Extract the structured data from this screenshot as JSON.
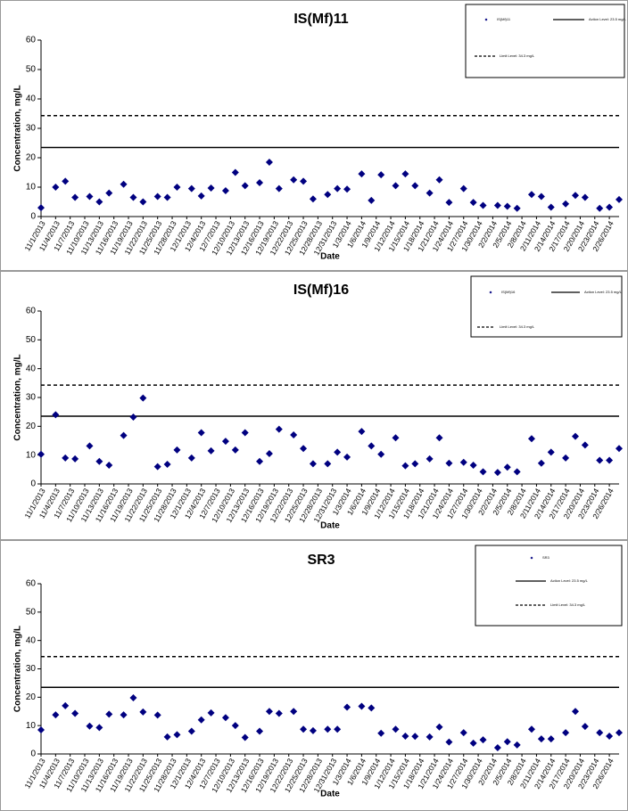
{
  "chart_data": [
    {
      "type": "scatter",
      "title": "IS(Mf)11",
      "x_label": "Date",
      "y_label": "Concentration, mg/L",
      "x": [
        "11/1/2013",
        "11/4/2013",
        "11/6/2013",
        "11/8/2013",
        "11/11/2013",
        "11/13/2013",
        "11/15/2013",
        "11/18/2013",
        "11/20/2013",
        "11/22/2013",
        "11/25/2013",
        "11/27/2013",
        "11/29/2013",
        "12/2/2013",
        "12/4/2013",
        "12/6/2013",
        "12/9/2013",
        "12/11/2013",
        "12/13/2013",
        "12/16/2013",
        "12/18/2013",
        "12/20/2013",
        "12/23/2013",
        "12/25/2013",
        "12/27/2013",
        "12/30/2013",
        "1/1/2014",
        "1/3/2014",
        "1/6/2014",
        "1/8/2014",
        "1/10/2014",
        "1/13/2014",
        "1/15/2014",
        "1/17/2014",
        "1/20/2014",
        "1/22/2014",
        "1/24/2014",
        "1/27/2014",
        "1/29/2014",
        "1/31/2014",
        "2/3/2014",
        "2/5/2014",
        "2/7/2014",
        "2/10/2014",
        "2/12/2014",
        "2/14/2014",
        "2/17/2014",
        "2/19/2014",
        "2/21/2014",
        "2/24/2014",
        "2/26/2014",
        "2/28/2014"
      ],
      "series": [
        {
          "name": "IS(Mf)11",
          "color": "#000080",
          "values": [
            3,
            10,
            12,
            6.5,
            6.8,
            5,
            8,
            11,
            6.5,
            5,
            6.8,
            6.5,
            10,
            9.5,
            7,
            9.7,
            8.8,
            15,
            10.5,
            11.5,
            18.5,
            9.5,
            12.5,
            12,
            6,
            7.5,
            9.5,
            9.3,
            14.5,
            5.5,
            14.2,
            10.5,
            14.5,
            10.5,
            8,
            12.5,
            4.8,
            9.5,
            4.8,
            3.8,
            3.8,
            3.5,
            2.8,
            7.5,
            6.8,
            3.2,
            4.3,
            7.2,
            6.5,
            2.8,
            3.2,
            5.8
          ]
        }
      ],
      "reference_lines": [
        {
          "name": "Action Level: 23.5 mg/L",
          "value": 23.5,
          "color": "#000000",
          "dashed": false
        },
        {
          "name": "Limit Level: 34.3 mg/L",
          "value": 34.3,
          "color": "#000000",
          "dashed": true
        }
      ],
      "xlim": [
        "11/1/2013",
        "2/28/2014"
      ],
      "xticks": [
        "11/1/2013",
        "11/4/2013",
        "11/7/2013",
        "11/10/2013",
        "11/13/2013",
        "11/16/2013",
        "11/19/2013",
        "11/22/2013",
        "11/25/2013",
        "11/28/2013",
        "12/1/2013",
        "12/4/2013",
        "12/7/2013",
        "12/10/2013",
        "12/13/2013",
        "12/16/2013",
        "12/19/2013",
        "12/22/2013",
        "12/25/2013",
        "12/28/2013",
        "12/31/2013",
        "1/3/2014",
        "1/6/2014",
        "1/9/2014",
        "1/12/2014",
        "1/15/2014",
        "1/18/2014",
        "1/21/2014",
        "1/24/2014",
        "1/27/2014",
        "1/30/2014",
        "2/2/2014",
        "2/5/2014",
        "2/8/2014",
        "2/11/2014",
        "2/14/2014",
        "2/17/2014",
        "2/20/2014",
        "2/23/2014",
        "2/26/2014"
      ],
      "ylim": [
        0,
        60
      ],
      "yticks": [
        0,
        10,
        20,
        30,
        40,
        50,
        60
      ]
    },
    {
      "type": "scatter",
      "title": "IS(Mf)16",
      "x_label": "Date",
      "y_label": "Concentration, mg/L",
      "x": [
        "11/1/2013",
        "11/4/2013",
        "11/6/2013",
        "11/8/2013",
        "11/11/2013",
        "11/13/2013",
        "11/15/2013",
        "11/18/2013",
        "11/20/2013",
        "11/22/2013",
        "11/25/2013",
        "11/27/2013",
        "11/29/2013",
        "12/2/2013",
        "12/4/2013",
        "12/6/2013",
        "12/9/2013",
        "12/11/2013",
        "12/13/2013",
        "12/16/2013",
        "12/18/2013",
        "12/20/2013",
        "12/23/2013",
        "12/25/2013",
        "12/27/2013",
        "12/30/2013",
        "1/1/2014",
        "1/3/2014",
        "1/6/2014",
        "1/8/2014",
        "1/10/2014",
        "1/13/2014",
        "1/15/2014",
        "1/17/2014",
        "1/20/2014",
        "1/22/2014",
        "1/24/2014",
        "1/27/2014",
        "1/29/2014",
        "1/31/2014",
        "2/3/2014",
        "2/5/2014",
        "2/7/2014",
        "2/10/2014",
        "2/12/2014",
        "2/14/2014",
        "2/17/2014",
        "2/19/2014",
        "2/21/2014",
        "2/24/2014",
        "2/26/2014",
        "2/28/2014"
      ],
      "series": [
        {
          "name": "IS(Mf)16",
          "color": "#000080",
          "values": [
            10.3,
            24,
            9,
            8.7,
            13.2,
            7.8,
            6.5,
            16.8,
            23.2,
            29.8,
            6,
            6.8,
            11.8,
            9,
            17.8,
            11.5,
            14.8,
            11.8,
            17.8,
            7.8,
            10.5,
            19,
            17,
            12.3,
            7,
            7,
            11,
            9.3,
            18.2,
            13.2,
            10.3,
            16,
            6.3,
            7,
            8.7,
            16,
            7.2,
            7.5,
            6.5,
            4.2,
            4,
            5.8,
            4.2,
            15.7,
            7.2,
            11,
            9,
            16.5,
            13.5,
            8.2,
            8.2,
            12.3
          ]
        }
      ],
      "reference_lines": [
        {
          "name": "Action Level: 23.5 mg/L",
          "value": 23.5,
          "color": "#000000",
          "dashed": false
        },
        {
          "name": "Limit Level: 34.3 mg/L",
          "value": 34.3,
          "color": "#000000",
          "dashed": true
        }
      ],
      "xlim": [
        "11/1/2013",
        "2/28/2014"
      ],
      "xticks": [
        "11/1/2013",
        "11/4/2013",
        "11/7/2013",
        "11/10/2013",
        "11/13/2013",
        "11/16/2013",
        "11/19/2013",
        "11/22/2013",
        "11/25/2013",
        "11/28/2013",
        "12/1/2013",
        "12/4/2013",
        "12/7/2013",
        "12/10/2013",
        "12/13/2013",
        "12/16/2013",
        "12/19/2013",
        "12/22/2013",
        "12/25/2013",
        "12/28/2013",
        "12/31/2013",
        "1/3/2014",
        "1/6/2014",
        "1/9/2014",
        "1/12/2014",
        "1/15/2014",
        "1/18/2014",
        "1/21/2014",
        "1/24/2014",
        "1/27/2014",
        "1/30/2014",
        "2/2/2014",
        "2/5/2014",
        "2/8/2014",
        "2/11/2014",
        "2/14/2014",
        "2/17/2014",
        "2/20/2014",
        "2/23/2014",
        "2/26/2014"
      ],
      "ylim": [
        0,
        60
      ],
      "yticks": [
        0,
        10,
        20,
        30,
        40,
        50,
        60
      ]
    },
    {
      "type": "scatter",
      "title": "SR3",
      "x_label": "Date",
      "y_label": "Concentration, mg/L",
      "x": [
        "11/1/2013",
        "11/4/2013",
        "11/6/2013",
        "11/8/2013",
        "11/11/2013",
        "11/13/2013",
        "11/15/2013",
        "11/18/2013",
        "11/20/2013",
        "11/22/2013",
        "11/25/2013",
        "11/27/2013",
        "11/29/2013",
        "12/2/2013",
        "12/4/2013",
        "12/6/2013",
        "12/9/2013",
        "12/11/2013",
        "12/13/2013",
        "12/16/2013",
        "12/18/2013",
        "12/20/2013",
        "12/23/2013",
        "12/25/2013",
        "12/27/2013",
        "12/30/2013",
        "1/1/2014",
        "1/3/2014",
        "1/6/2014",
        "1/8/2014",
        "1/10/2014",
        "1/13/2014",
        "1/15/2014",
        "1/17/2014",
        "1/20/2014",
        "1/22/2014",
        "1/24/2014",
        "1/27/2014",
        "1/29/2014",
        "1/31/2014",
        "2/3/2014",
        "2/5/2014",
        "2/7/2014",
        "2/10/2014",
        "2/12/2014",
        "2/14/2014",
        "2/17/2014",
        "2/19/2014",
        "2/21/2014",
        "2/24/2014",
        "2/26/2014",
        "2/28/2014"
      ],
      "series": [
        {
          "name": "SR3",
          "color": "#000080",
          "values": [
            8.5,
            13.8,
            17,
            14.3,
            9.8,
            9.3,
            14,
            13.8,
            19.8,
            14.8,
            13.7,
            6,
            6.8,
            8,
            12,
            14.5,
            12.8,
            10,
            5.8,
            8,
            15,
            14.3,
            15,
            8.7,
            8.2,
            8.7,
            8.7,
            16.5,
            16.8,
            16.2,
            7.3,
            8.7,
            6.3,
            6.2,
            6,
            9.5,
            4.2,
            7.5,
            3.8,
            5,
            2.2,
            4.3,
            3.2,
            8.7,
            5.3,
            5.3,
            7.5,
            15,
            9.7,
            7.5,
            6.3,
            7.5
          ]
        }
      ],
      "reference_lines": [
        {
          "name": "Action Level: 23.5 mg/L",
          "value": 23.5,
          "color": "#000000",
          "dashed": false
        },
        {
          "name": "Limit Level: 34.3 mg/L",
          "value": 34.3,
          "color": "#000000",
          "dashed": true
        }
      ],
      "xlim": [
        "11/1/2013",
        "2/28/2014"
      ],
      "xticks": [
        "11/1/2013",
        "11/4/2013",
        "11/7/2013",
        "11/10/2013",
        "11/13/2013",
        "11/16/2013",
        "11/19/2013",
        "11/22/2013",
        "11/25/2013",
        "11/28/2013",
        "12/1/2013",
        "12/4/2013",
        "12/7/2013",
        "12/10/2013",
        "12/13/2013",
        "12/16/2013",
        "12/19/2013",
        "12/22/2013",
        "12/25/2013",
        "12/28/2013",
        "12/31/2013",
        "1/3/2014",
        "1/6/2014",
        "1/9/2014",
        "1/12/2014",
        "1/15/2014",
        "1/18/2014",
        "1/21/2014",
        "1/24/2014",
        "1/27/2014",
        "1/30/2014",
        "2/2/2014",
        "2/5/2014",
        "2/8/2014",
        "2/11/2014",
        "2/14/2014",
        "2/17/2014",
        "2/20/2014",
        "2/23/2014",
        "2/26/2014"
      ],
      "ylim": [
        0,
        60
      ],
      "yticks": [
        0,
        10,
        20,
        30,
        40,
        50,
        60
      ]
    }
  ]
}
